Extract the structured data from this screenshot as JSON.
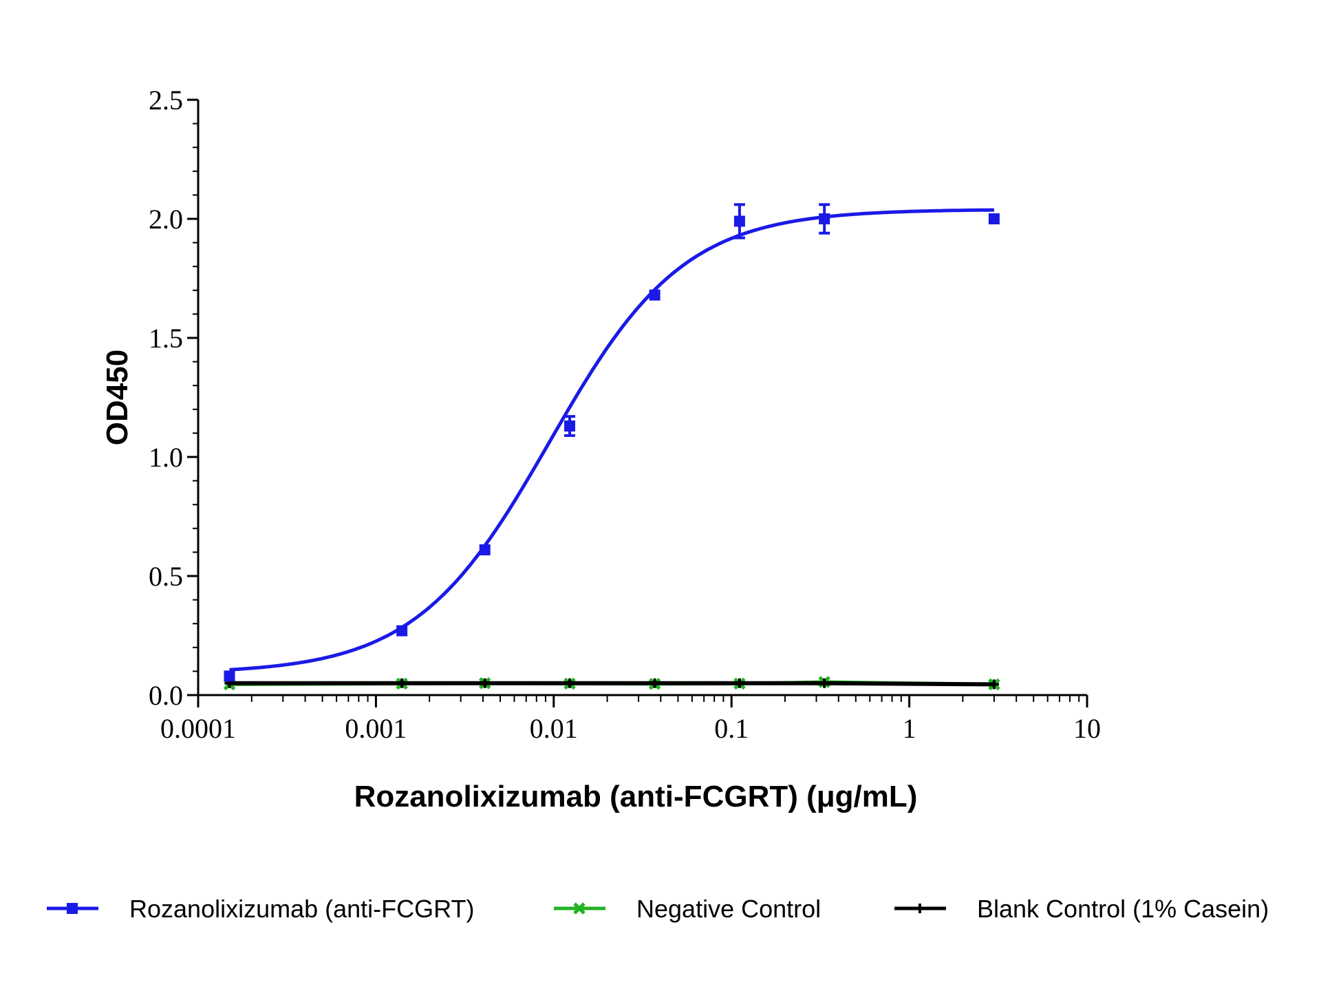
{
  "chart_data": {
    "type": "scatter",
    "xlabel": "Rozanolixizumab (anti-FCGRT) (μg/mL)",
    "ylabel": "OD450",
    "x_scale": "log",
    "xlim": [
      0.0001,
      10
    ],
    "ylim": [
      0,
      2.5
    ],
    "x_ticks": [
      {
        "value": 0.0001,
        "label": "0.0001"
      },
      {
        "value": 0.001,
        "label": "0.001"
      },
      {
        "value": 0.01,
        "label": "0.01"
      },
      {
        "value": 0.1,
        "label": "0.1"
      },
      {
        "value": 1,
        "label": "1"
      },
      {
        "value": 10,
        "label": "10"
      }
    ],
    "y_ticks": [
      {
        "value": 0,
        "label": "0.0"
      },
      {
        "value": 0.5,
        "label": "0.5"
      },
      {
        "value": 1.0,
        "label": "1.0"
      },
      {
        "value": 1.5,
        "label": "1.5"
      },
      {
        "value": 2.0,
        "label": "2.0"
      },
      {
        "value": 2.5,
        "label": "2.5"
      }
    ],
    "grid": false,
    "legend_position": "bottom",
    "series": [
      {
        "name": "Rozanolixizumab (anti-FCGRT)",
        "color": "#1a1ae6",
        "marker": "square",
        "fit": "four-parameter logistic",
        "fit_params": {
          "bottom": 0.09,
          "top": 2.04,
          "ec50": 0.0095,
          "hill": 1.15
        },
        "points": [
          {
            "x": 0.00015,
            "y": 0.08,
            "err": 0.01
          },
          {
            "x": 0.0014,
            "y": 0.27,
            "err": 0.01
          },
          {
            "x": 0.0041,
            "y": 0.61,
            "err": 0.01
          },
          {
            "x": 0.0123,
            "y": 1.13,
            "err": 0.04
          },
          {
            "x": 0.037,
            "y": 1.68,
            "err": 0.01
          },
          {
            "x": 0.111,
            "y": 1.99,
            "err": 0.07
          },
          {
            "x": 0.333,
            "y": 2.0,
            "err": 0.06
          },
          {
            "x": 3.0,
            "y": 2.0,
            "err": 0.01
          }
        ]
      },
      {
        "name": "Negative Control",
        "color": "#22b222",
        "marker": "x",
        "points": [
          {
            "x": 0.00015,
            "y": 0.045
          },
          {
            "x": 0.0014,
            "y": 0.048
          },
          {
            "x": 0.0041,
            "y": 0.05
          },
          {
            "x": 0.0123,
            "y": 0.048
          },
          {
            "x": 0.037,
            "y": 0.047
          },
          {
            "x": 0.111,
            "y": 0.048
          },
          {
            "x": 0.333,
            "y": 0.055
          },
          {
            "x": 3.0,
            "y": 0.045
          }
        ]
      },
      {
        "name": "Blank Control (1% Casein)",
        "color": "#000000",
        "marker": "plus",
        "points": [
          {
            "x": 0.00015,
            "y": 0.05
          },
          {
            "x": 0.0014,
            "y": 0.05
          },
          {
            "x": 0.0041,
            "y": 0.05
          },
          {
            "x": 0.0123,
            "y": 0.05
          },
          {
            "x": 0.037,
            "y": 0.05
          },
          {
            "x": 0.111,
            "y": 0.05
          },
          {
            "x": 0.333,
            "y": 0.05
          },
          {
            "x": 3.0,
            "y": 0.045
          }
        ]
      }
    ]
  }
}
